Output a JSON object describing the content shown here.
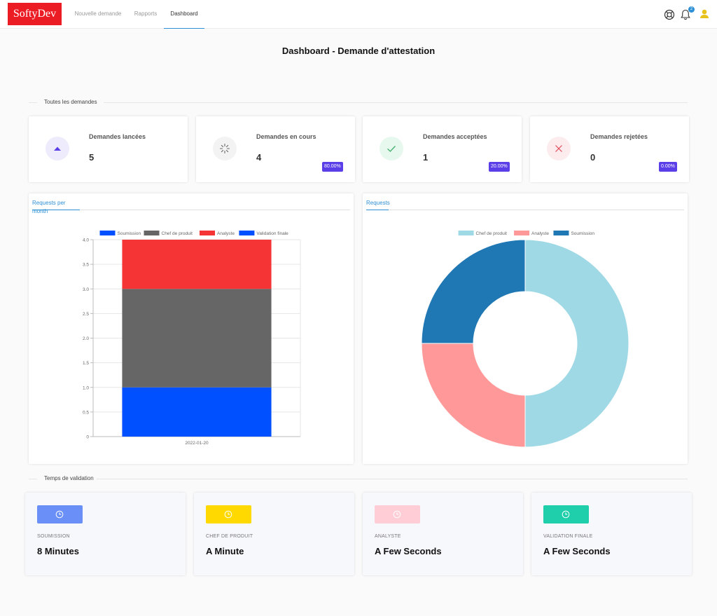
{
  "header": {
    "logo": "SoftyDev",
    "nav": [
      {
        "label": "Nouvelle demande",
        "active": false
      },
      {
        "label": "Rapports",
        "active": false
      },
      {
        "label": "Dashboard",
        "active": true
      }
    ],
    "notification_count": "2",
    "icons": [
      "help-ring-icon",
      "bell-icon",
      "user-icon"
    ]
  },
  "page_title": "Dashboard - Demande d'attestation",
  "section_all": "Toutes les demandes",
  "stats": [
    {
      "label": "Demandes lancées",
      "value": "5",
      "badge": "",
      "icon": "triangle-up-icon",
      "color": "#5a3ee8",
      "bg": "#eeebfd"
    },
    {
      "label": "Demandes en cours",
      "value": "4",
      "badge": "80.00%",
      "icon": "spinner-icon",
      "color": "#666666",
      "bg": "#f3f3f3"
    },
    {
      "label": "Demandes acceptées",
      "value": "1",
      "badge": "20.00%",
      "icon": "check-icon",
      "color": "#3fae6b",
      "bg": "#e7f8ee"
    },
    {
      "label": "Demandes rejetées",
      "value": "0",
      "badge": "0.00%",
      "icon": "close-icon",
      "color": "#e24b5b",
      "bg": "#fdecee"
    }
  ],
  "bar_chart_tab": "Requests per month",
  "doughnut_tab": "Requests",
  "chart_data": [
    {
      "type": "bar",
      "stacked": true,
      "categories": [
        "2022-01-20"
      ],
      "series": [
        {
          "name": "Soumission",
          "values": [
            1
          ],
          "color": "#0050ff"
        },
        {
          "name": "Chef de produit",
          "values": [
            2
          ],
          "color": "#666666"
        },
        {
          "name": "Analyste",
          "values": [
            1
          ],
          "color": "#f53535"
        },
        {
          "name": "Validation finale",
          "values": [
            0
          ],
          "color": "#0050ff"
        }
      ],
      "ylim": [
        0,
        4
      ],
      "yticks": [
        "0",
        "0.5",
        "1.0",
        "1.5",
        "2.0",
        "2.5",
        "3.0",
        "3.5",
        "4.0"
      ],
      "legend": "top",
      "grid": true
    },
    {
      "type": "pie",
      "donut": true,
      "labels": [
        "Chef de produit",
        "Analyste",
        "Soumission"
      ],
      "values": [
        2,
        1,
        1
      ],
      "colors": [
        "#a0d9e6",
        "#ff9999",
        "#1f77b4"
      ],
      "legend": "top"
    }
  ],
  "section_time": "Temps de validation",
  "times": [
    {
      "label": "SOUMISSION",
      "value": "8 Minutes",
      "color": "#6a8ff7"
    },
    {
      "label": "CHEF DE PRODUIT",
      "value": "A Minute",
      "color": "#ffd900"
    },
    {
      "label": "ANALYSTE",
      "value": "A Few Seconds",
      "color": "#ffcdd5"
    },
    {
      "label": "VALIDATION FINALE",
      "value": "A Few Seconds",
      "color": "#1fcfab"
    }
  ]
}
